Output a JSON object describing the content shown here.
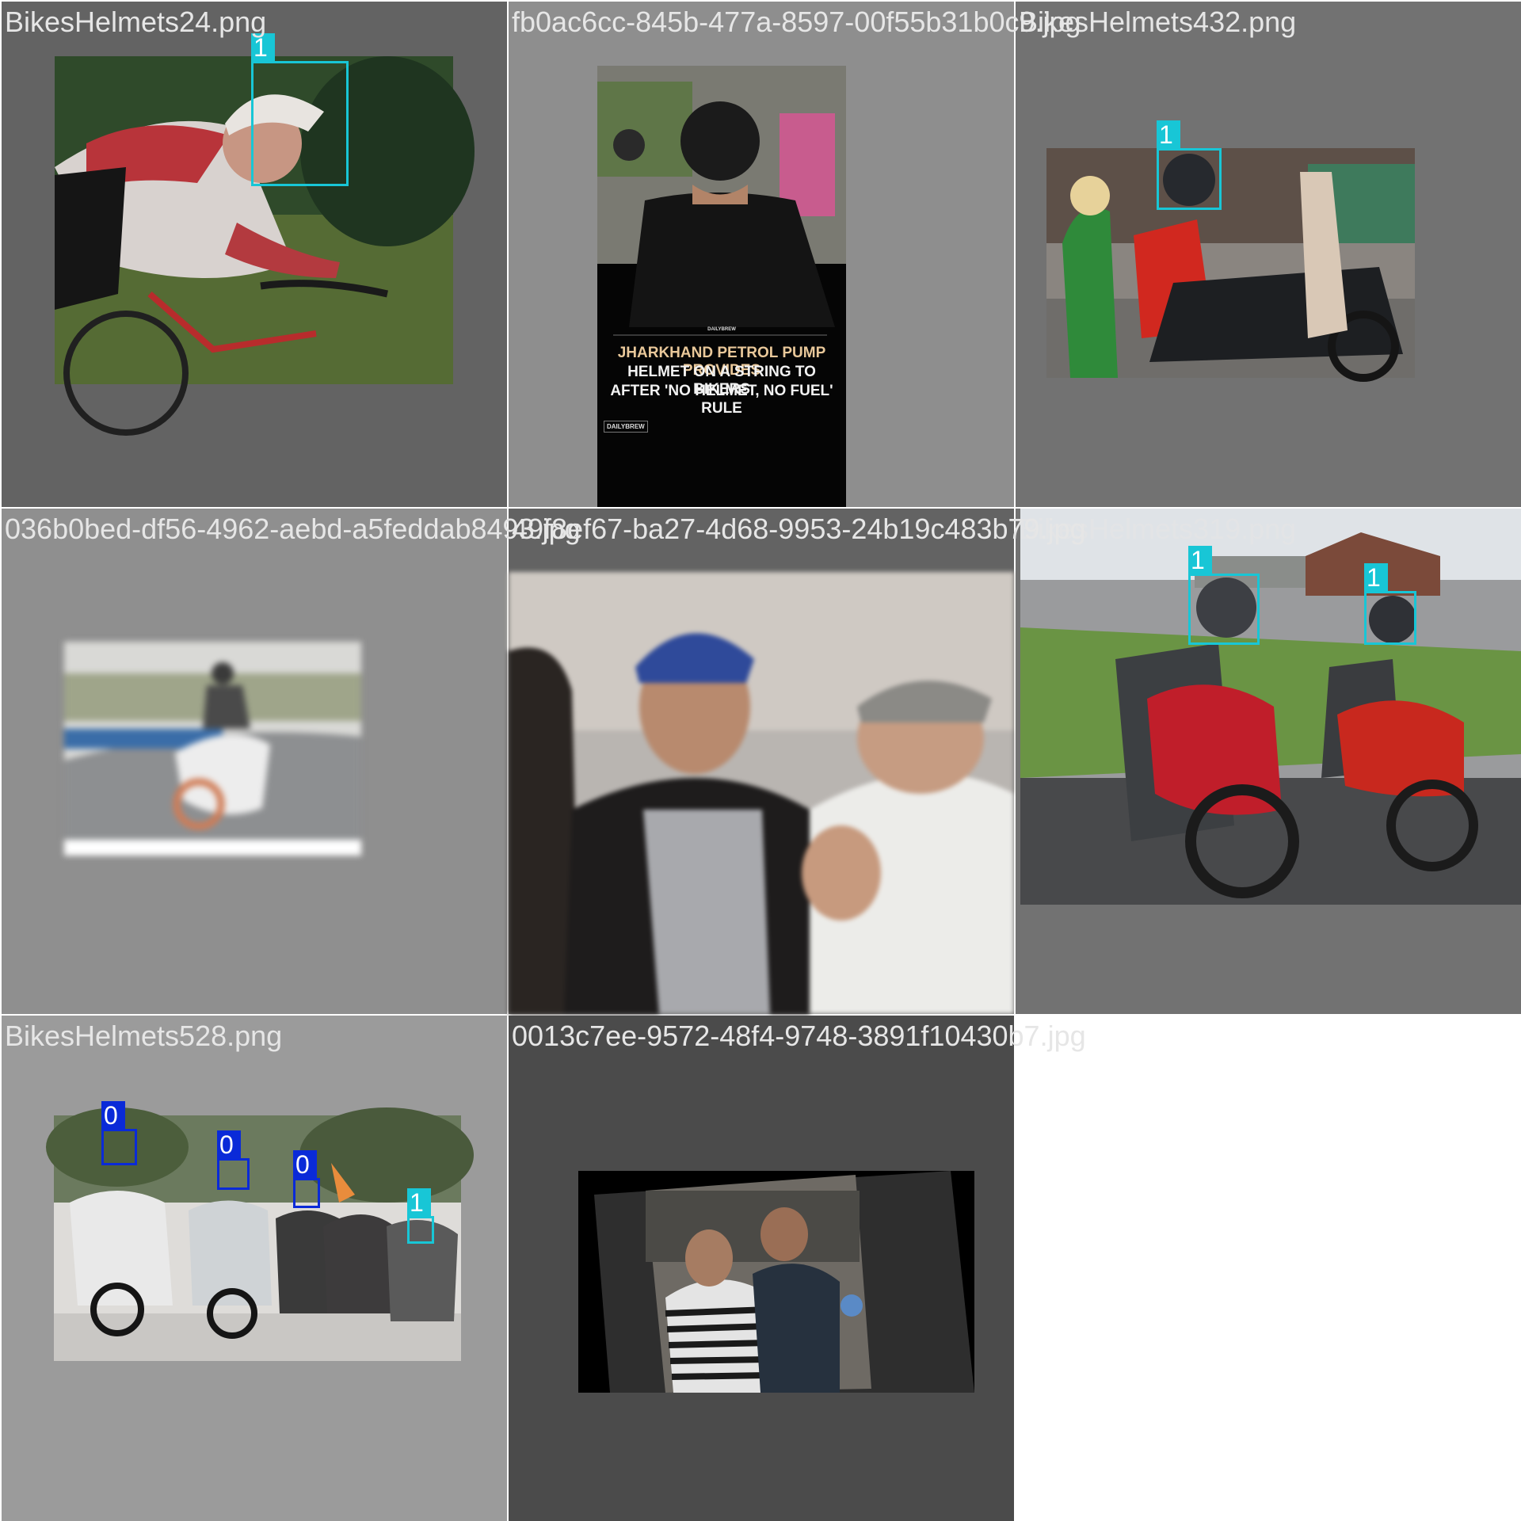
{
  "colors": {
    "class_1": "#18c6d6",
    "class_0": "#0a2ad8"
  },
  "tiles": [
    {
      "filename": "BikesHelmets24.png",
      "boxes": [
        {
          "label": "1"
        }
      ]
    },
    {
      "filename": "fb0ac6cc-845b-477a-8597-00f55b31b0c9.jpg",
      "boxes": [],
      "overlay": {
        "brand_top": "DAILYBREW",
        "headline_line1": "JHARKHAND PETROL PUMP PROVIDES",
        "headline_line2": "HELMET ON A STRING TO BIKERS",
        "headline_line3": "AFTER 'NO HELMET, NO FUEL' RULE",
        "brand_bottom": "DAILYBREW"
      }
    },
    {
      "filename": "BikesHelmets432.png",
      "boxes": [
        {
          "label": "1"
        }
      ]
    },
    {
      "filename": "036b0bed-df56-4962-aebd-a5feddab8493.jpg",
      "boxes": []
    },
    {
      "filename": "49f8ef67-ba27-4d68-9953-24b19c483b79.jpg",
      "boxes": []
    },
    {
      "filename": "BikesHelmets319.png",
      "boxes": [
        {
          "label": "1"
        },
        {
          "label": "1"
        }
      ]
    },
    {
      "filename": "BikesHelmets528.png",
      "boxes": [
        {
          "label": "0"
        },
        {
          "label": "0"
        },
        {
          "label": "0"
        },
        {
          "label": "1"
        }
      ]
    },
    {
      "filename": "0013c7ee-9572-48f4-9748-3891f10430b7.jpg",
      "boxes": []
    }
  ]
}
